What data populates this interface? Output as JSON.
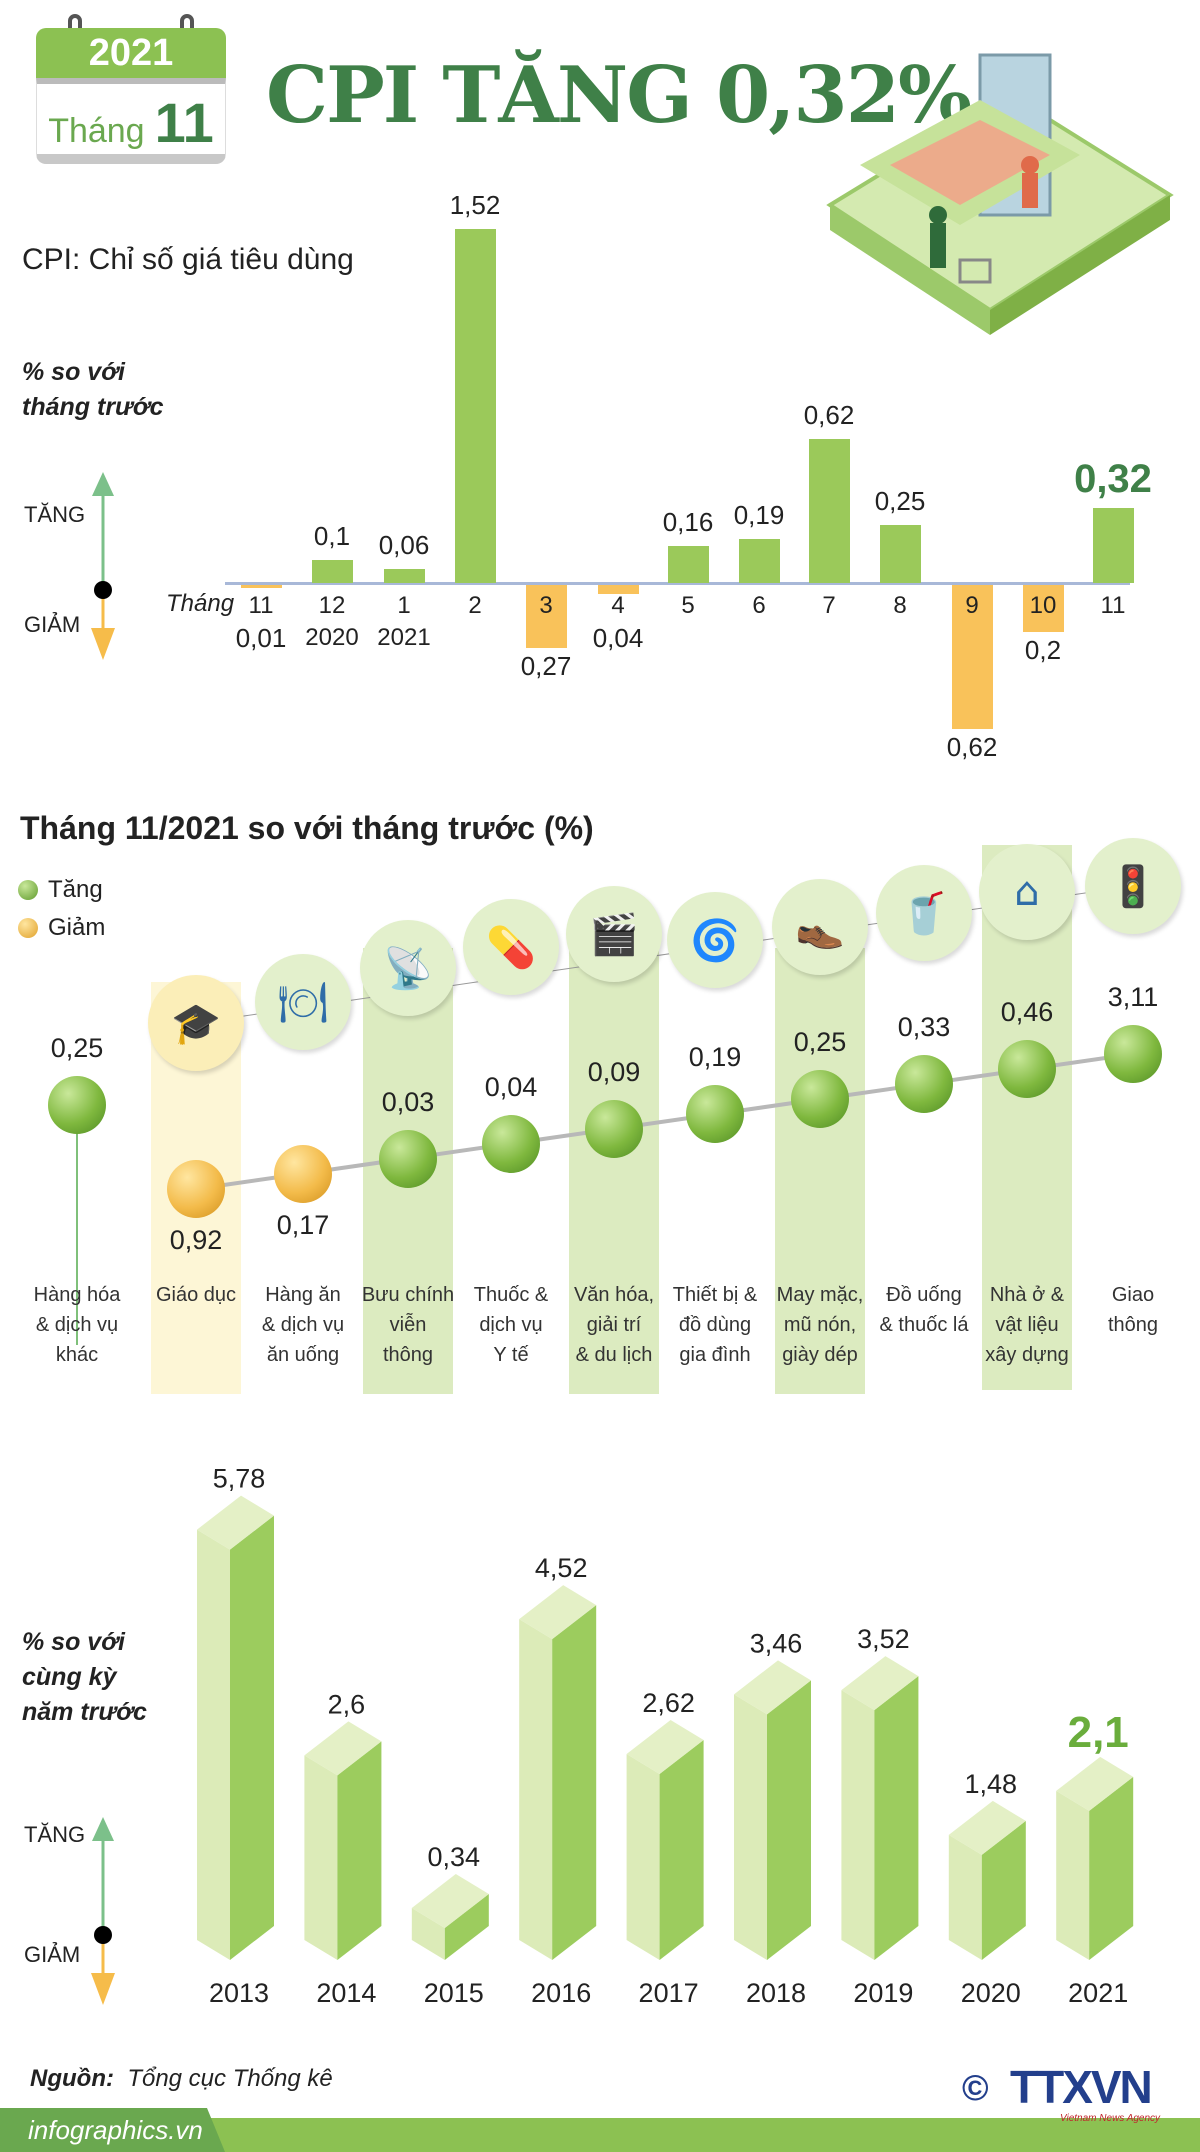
{
  "header": {
    "year": "2021",
    "month_label": "Tháng",
    "month": "11",
    "title": "CPI TĂNG 0,32%"
  },
  "subtitle": "CPI: Chỉ số giá tiêu dùng",
  "axis_note_monthly": [
    "% so với",
    "tháng trước"
  ],
  "axis_note_yearly": [
    "% so với",
    "cùng kỳ",
    "năm trước"
  ],
  "direction": {
    "up": "TĂNG",
    "down": "GIẢM"
  },
  "colors": {
    "increase": "#9bc95a",
    "decrease": "#f9c25a",
    "title": "#3f8048"
  },
  "chart_data": [
    {
      "type": "bar",
      "xlabel_prefix": "Tháng",
      "categories": [
        "11",
        "12",
        "1",
        "2",
        "3",
        "4",
        "5",
        "6",
        "7",
        "8",
        "9",
        "10",
        "11"
      ],
      "sublabels": [
        "",
        "2020",
        "2021",
        "",
        "",
        "",
        "",
        "",
        "",
        "",
        "",
        "",
        ""
      ],
      "values": [
        -0.01,
        0.1,
        0.06,
        1.52,
        -0.27,
        -0.04,
        0.16,
        0.19,
        0.62,
        0.25,
        -0.62,
        -0.2,
        0.32
      ],
      "value_labels": [
        "0,01",
        "0,1",
        "0,06",
        "1,52",
        "0,27",
        "0,04",
        "0,16",
        "0,19",
        "0,62",
        "0,25",
        "0,62",
        "0,2",
        "0,32"
      ],
      "ylabel": "% so với tháng trước"
    },
    {
      "type": "scatter",
      "title": "Tháng 11/2021 so với tháng trước (%)",
      "legend": [
        {
          "label": "Tăng",
          "color": "#7fb83e"
        },
        {
          "label": "Giảm",
          "color": "#f3bb4a"
        }
      ],
      "categories": [
        "Hàng hóa\n& dịch vụ\nkhác",
        "Giáo dục",
        "Hàng ăn\n& dịch vụ\năn uống",
        "Bưu chính\nviễn\nthông",
        "Thuốc &\ndịch vụ\nY tế",
        "Văn hóa,\ngiải trí\n& du lịch",
        "Thiết bị &\nđồ dùng\ngia đình",
        "May mặc,\nmũ nón,\ngiày dép",
        "Đồ uống\n& thuốc lá",
        "Nhà ở &\nvật liệu\nxây dựng",
        "Giao\nthông"
      ],
      "icons": [
        "",
        "graduation-cap-icon",
        "food-plate-icon",
        "antenna-tower-icon",
        "pills-icon",
        "clapperboard-icon",
        "washing-machine-icon",
        "clothes-shoes-icon",
        "drink-cigarette-icon",
        "house-icon",
        "traffic-light-icon"
      ],
      "values": [
        0.25,
        -0.92,
        -0.17,
        0.03,
        0.04,
        0.09,
        0.19,
        0.25,
        0.33,
        0.46,
        3.11
      ],
      "value_labels": [
        "0,25",
        "0,92",
        "0,17",
        "0,03",
        "0,04",
        "0,09",
        "0,19",
        "0,25",
        "0,33",
        "0,46",
        "3,11"
      ]
    },
    {
      "type": "bar",
      "categories": [
        "2013",
        "2014",
        "2015",
        "2016",
        "2017",
        "2018",
        "2019",
        "2020",
        "2021"
      ],
      "values": [
        5.78,
        2.6,
        0.34,
        4.52,
        2.62,
        3.46,
        3.52,
        1.48,
        2.1
      ],
      "value_labels": [
        "5,78",
        "2,6",
        "0,34",
        "4,52",
        "2,62",
        "3,46",
        "3,52",
        "1,48",
        "2,1"
      ],
      "ylabel": "% so với cùng kỳ năm trước"
    }
  ],
  "source": {
    "label": "Nguồn:",
    "value": "Tổng cục Thống kê"
  },
  "footer": {
    "site": "infographics.vn",
    "logo": "TTXVN",
    "logo_sub": "Vietnam News Agency",
    "copyright": "©"
  }
}
